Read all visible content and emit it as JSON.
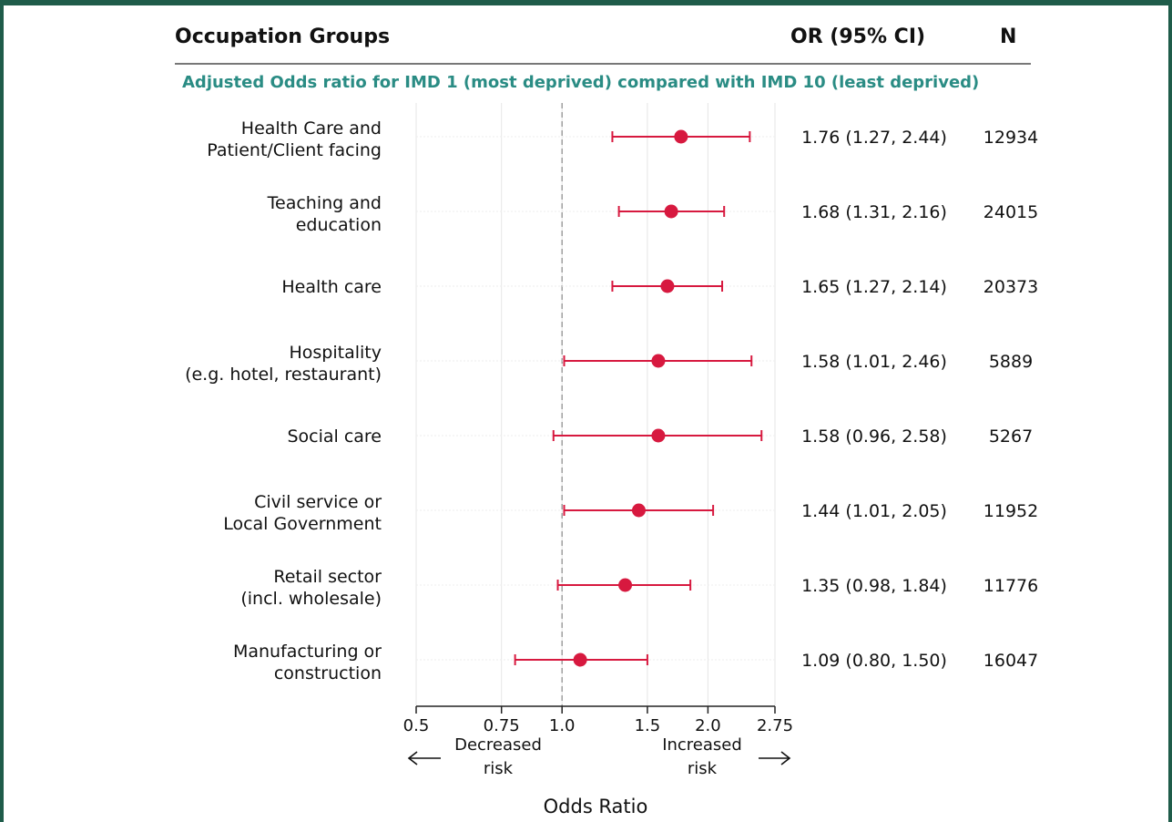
{
  "header": {
    "groups": "Occupation Groups",
    "or_ci": "OR (95% CI)",
    "n": "N"
  },
  "subtitle": "Adjusted Odds ratio for IMD 1 (most deprived) compared with IMD 10 (least deprived)",
  "colors": {
    "point": "#d7193f",
    "reference_line": "#999999",
    "grid": "#e6e6e6",
    "subtitle": "#2a8c84",
    "frame": "#1f5c4a"
  },
  "chart_data": {
    "type": "scatter",
    "subtype": "forest-plot",
    "xlabel": "Odds Ratio",
    "x_scale": "log",
    "xlim": [
      0.5,
      2.75
    ],
    "x_ticks": [
      0.5,
      0.75,
      1.0,
      1.5,
      2.0,
      2.75
    ],
    "x_tick_labels": [
      "0.5",
      "0.75",
      "1.0",
      "1.5",
      "2.0",
      "2.75"
    ],
    "reference_value": 1.0,
    "annotation_left": [
      "Decreased",
      "risk"
    ],
    "annotation_right": [
      "Increased",
      "risk"
    ],
    "rows": [
      {
        "label": [
          "Health Care and",
          "Patient/Client facing"
        ],
        "or": 1.76,
        "lo": 1.27,
        "hi": 2.44,
        "ci_text": "1.76 (1.27, 2.44)",
        "n": "12934"
      },
      {
        "label": [
          "Teaching and",
          "education"
        ],
        "or": 1.68,
        "lo": 1.31,
        "hi": 2.16,
        "ci_text": "1.68 (1.31, 2.16)",
        "n": "24015"
      },
      {
        "label": [
          "Health care"
        ],
        "or": 1.65,
        "lo": 1.27,
        "hi": 2.14,
        "ci_text": "1.65 (1.27, 2.14)",
        "n": "20373"
      },
      {
        "label": [
          "Hospitality",
          "(e.g. hotel, restaurant)"
        ],
        "or": 1.58,
        "lo": 1.01,
        "hi": 2.46,
        "ci_text": "1.58 (1.01, 2.46)",
        "n": "5889"
      },
      {
        "label": [
          "Social care"
        ],
        "or": 1.58,
        "lo": 0.96,
        "hi": 2.58,
        "ci_text": "1.58 (0.96, 2.58)",
        "n": "5267"
      },
      {
        "label": [
          "Civil service or",
          "Local Government"
        ],
        "or": 1.44,
        "lo": 1.01,
        "hi": 2.05,
        "ci_text": "1.44 (1.01, 2.05)",
        "n": "11952"
      },
      {
        "label": [
          "Retail sector",
          "(incl. wholesale)"
        ],
        "or": 1.35,
        "lo": 0.98,
        "hi": 1.84,
        "ci_text": "1.35 (0.98, 1.84)",
        "n": "11776"
      },
      {
        "label": [
          "Manufacturing or",
          "construction"
        ],
        "or": 1.09,
        "lo": 0.8,
        "hi": 1.5,
        "ci_text": "1.09 (0.80, 1.50)",
        "n": "16047"
      }
    ]
  }
}
